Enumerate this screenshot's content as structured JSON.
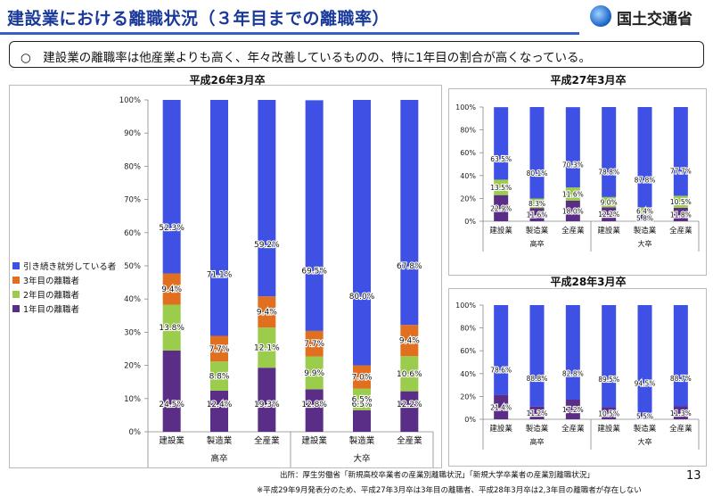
{
  "header": {
    "title": "建設業における離職状況（３年目までの離職率）",
    "logo_text": "国土交通省"
  },
  "summary": "○　建設業の離職率は他産業よりも高く、年々改善しているものの、特に1年目の割合が高くなっている。",
  "legend": {
    "items": [
      {
        "label": "引き続き就労している者",
        "color": "#3f51e4"
      },
      {
        "label": "3年目の離職者",
        "color": "#e07020"
      },
      {
        "label": "2年目の離職者",
        "color": "#9bcc4c"
      },
      {
        "label": "1年目の離職者",
        "color": "#5a2e86"
      }
    ]
  },
  "colors": {
    "continuing": "#3f51e4",
    "year3": "#e07020",
    "year2": "#9bcc4c",
    "year1": "#5a2e86"
  },
  "footer": {
    "source": "出所：厚生労働省「新規高校卒業者の産業別離職状況」「新規大学卒業者の産業別離職状況」",
    "note": "※平成29年9月発表分のため、平成27年3月卒は3年目の離職者、平成28年3月卒は2,3年目の離職者が存在しない",
    "page": "13"
  },
  "chart_data": [
    {
      "type": "bar",
      "title": "平成26年3月卒",
      "stacked": true,
      "categories": [
        "建設業",
        "製造業",
        "全産業",
        "建設業",
        "製造業",
        "全産業"
      ],
      "groups": [
        "高卒",
        "大卒"
      ],
      "ylim": [
        0,
        100
      ],
      "yticks": [
        "0%",
        "10%",
        "20%",
        "30%",
        "40%",
        "50%",
        "60%",
        "70%",
        "80%",
        "90%",
        "100%"
      ],
      "series": [
        {
          "name": "1年目の離職者",
          "values": [
            24.5,
            12.4,
            19.3,
            12.8,
            6.5,
            12.2
          ],
          "labels": [
            "24.5%",
            "12.4%",
            "19.3%",
            "12.8%",
            "6.5%",
            "12.2%"
          ]
        },
        {
          "name": "2年目の離職者",
          "values": [
            13.8,
            8.8,
            12.1,
            9.9,
            6.5,
            10.6
          ],
          "labels": [
            "13.8%",
            "8.8%",
            "12.1%",
            "9.9%",
            "6.5%",
            "10.6%"
          ]
        },
        {
          "name": "3年目の離職者",
          "values": [
            9.4,
            7.7,
            9.4,
            7.7,
            7.0,
            9.4
          ],
          "labels": [
            "9.4%",
            "7.7%",
            "9.4%",
            "7.7%",
            "7.0%",
            "9.4%"
          ]
        },
        {
          "name": "引き続き就労している者",
          "values": [
            52.3,
            71.1,
            59.2,
            69.5,
            80.0,
            67.8
          ],
          "labels": [
            "52.3%",
            "71.1%",
            "59.2%",
            "69.5%",
            "80.0%",
            "67.8%"
          ]
        }
      ]
    },
    {
      "type": "bar",
      "title": "平成27年3月卒",
      "stacked": true,
      "categories": [
        "建設業",
        "製造業",
        "全産業",
        "建設業",
        "製造業",
        "全産業"
      ],
      "groups": [
        "高卒",
        "大卒"
      ],
      "ylim": [
        0,
        100
      ],
      "yticks": [
        "0%",
        "20%",
        "40%",
        "60%",
        "80%",
        "100%"
      ],
      "series": [
        {
          "name": "1年目の離職者",
          "values": [
            22.9,
            11.6,
            18.0,
            12.2,
            5.8,
            11.8
          ],
          "labels": [
            "22.9%",
            "11.6%",
            "18.0%",
            "12.2%",
            "5.8%",
            "11.8%"
          ]
        },
        {
          "name": "2年目の離職者",
          "values": [
            13.5,
            8.3,
            11.6,
            9.0,
            6.4,
            10.5
          ],
          "labels": [
            "13.5%",
            "8.3%",
            "11.6%",
            "9.0%",
            "6.4%",
            "10.5%"
          ]
        },
        {
          "name": "引き続き就労している者",
          "values": [
            63.5,
            80.1,
            70.3,
            78.8,
            87.8,
            77.7
          ],
          "labels": [
            "63.5%",
            "80.1%",
            "70.3%",
            "78.8%",
            "87.8%",
            "77.7%"
          ]
        }
      ]
    },
    {
      "type": "bar",
      "title": "平成28年3月卒",
      "stacked": true,
      "categories": [
        "建設業",
        "製造業",
        "全産業",
        "建設業",
        "製造業",
        "全産業"
      ],
      "groups": [
        "高卒",
        "大卒"
      ],
      "ylim": [
        0,
        100
      ],
      "yticks": [
        "0%",
        "20%",
        "40%",
        "60%",
        "80%",
        "100%"
      ],
      "series": [
        {
          "name": "1年目の離職者",
          "values": [
            21.4,
            11.2,
            17.2,
            10.5,
            5.5,
            11.3
          ],
          "labels": [
            "21.4%",
            "11.2%",
            "17.2%",
            "10.5%",
            "5.5%",
            "11.3%"
          ]
        },
        {
          "name": "引き続き就労している者",
          "values": [
            78.6,
            88.8,
            82.8,
            89.5,
            94.5,
            88.7
          ],
          "labels": [
            "78.6%",
            "88.8%",
            "82.8%",
            "89.5%",
            "94.5%",
            "88.7%"
          ]
        }
      ]
    }
  ]
}
